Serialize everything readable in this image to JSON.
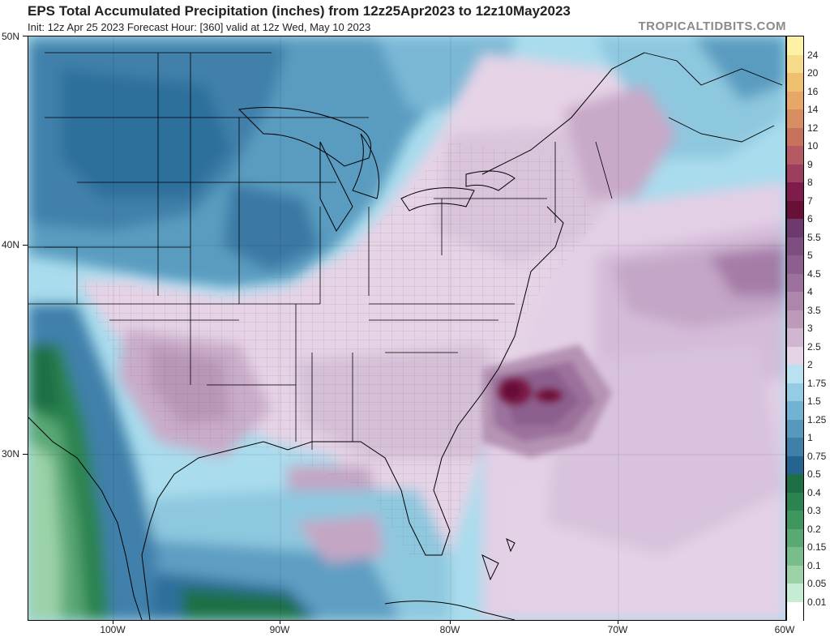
{
  "header": {
    "title": "EPS Total Accumulated Precipitation (inches) from 12z25Apr2023 to 12z10May2023",
    "subtitle": "Init: 12z Apr 25 2023   Forecast Hour: [360]   valid at 12z Wed, May 10 2023",
    "brand": "TROPICALTIDBITS.COM"
  },
  "axes": {
    "lat_labels": [
      "50N",
      "40N",
      "30N"
    ],
    "lon_labels": [
      "100W",
      "90W",
      "80W",
      "70W",
      "60W"
    ]
  },
  "colorbar": {
    "labels": [
      "24",
      "20",
      "16",
      "14",
      "12",
      "10",
      "9",
      "8",
      "7",
      "6",
      "5.5",
      "5",
      "4.5",
      "4",
      "3.5",
      "3",
      "2.5",
      "2",
      "1.75",
      "1.5",
      "1.25",
      "1",
      "0.75",
      "0.5",
      "0.4",
      "0.3",
      "0.2",
      "0.15",
      "0.1",
      "0.05",
      "0.01"
    ],
    "colors": [
      "#fdf1a6",
      "#f6dc8a",
      "#eec070",
      "#e7a768",
      "#d98d62",
      "#c7725c",
      "#b55a63",
      "#9c3e5e",
      "#7e1d4c",
      "#671139",
      "#6e3a6e",
      "#7e4e80",
      "#8c5f8e",
      "#9c729c",
      "#ac86ab",
      "#bc9aba",
      "#d0b6d0",
      "#e6d3e6",
      "#b8e2f0",
      "#93cce3",
      "#72b3d3",
      "#5799bd",
      "#3f7fa8",
      "#24648f",
      "#1e6f45",
      "#2b8350",
      "#3f965f",
      "#5aa874",
      "#79bd8c",
      "#9bd2a8",
      "#c6ecd3",
      "#ffffff"
    ]
  },
  "map_colors": {
    "ocean_base": "#a7dbeb",
    "heavy_core": "#6a1442",
    "land_line": "#000000",
    "county_line": "#6e5a6e"
  }
}
